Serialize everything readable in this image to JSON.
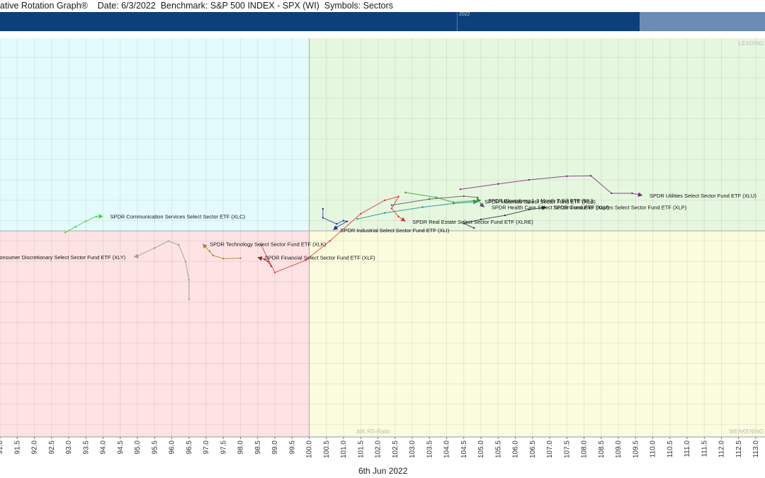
{
  "header": {
    "title_text": "ative Rotation Graph®    Date: 6/3/2022  Benchmark: S&P 500 INDEX - SPX (WI)  Symbols: Sectors",
    "timeline_year": "2022"
  },
  "footer": {
    "date_label": "6th Jun 2022"
  },
  "colors": {
    "leading": "#e6f7e0",
    "weakening": "#fbfbde",
    "lagging": "#fde3e3",
    "improving": "#e4fbfc",
    "nav_bar": "#0d3f78",
    "nav_window": "#6b8db5"
  },
  "chart_data": {
    "type": "scatter",
    "title": "",
    "xlabel": "JdK RS-Ratio",
    "ylabel": "",
    "xlim": [
      91.0,
      113.3
    ],
    "ylim": [
      95.1,
      104.8
    ],
    "center": [
      100,
      100
    ],
    "grid": true,
    "quadrant_labels": [
      "LEADING",
      "WEAKENING"
    ],
    "x_ticks": [
      "91.0",
      "91.5",
      "92.0",
      "92.5",
      "93.0",
      "93.5",
      "94.0",
      "94.5",
      "95.0",
      "95.5",
      "96.0",
      "96.5",
      "97.0",
      "97.5",
      "98.0",
      "98.5",
      "99.0",
      "99.5",
      "100.0",
      "100.5",
      "101.0",
      "101.5",
      "102.0",
      "102.5",
      "103.0",
      "103.5",
      "104.0",
      "104.5",
      "105.0",
      "105.5",
      "106.0",
      "106.5",
      "107.0",
      "107.5",
      "108.0",
      "108.5",
      "109.0",
      "109.5",
      "110.0",
      "110.5",
      "111.0",
      "111.5",
      "112.0",
      "112.5",
      "113.0"
    ],
    "series": [
      {
        "name": "SPDR Communication Services Select Sector ETF (XLC)",
        "color": "#33dd33",
        "points": [
          [
            92.9,
            99.96
          ],
          [
            93.2,
            100.1
          ],
          [
            93.5,
            100.24
          ],
          [
            93.8,
            100.35
          ],
          [
            94.0,
            100.36
          ]
        ]
      },
      {
        "name": "SPDR Consumer Discretionary Select Sector Fund ETF (XLY)",
        "color": "#999999",
        "points": [
          [
            96.5,
            98.32
          ],
          [
            96.5,
            98.8
          ],
          [
            96.4,
            99.25
          ],
          [
            96.2,
            99.66
          ],
          [
            95.9,
            99.75
          ],
          [
            95.5,
            99.58
          ],
          [
            95.0,
            99.38
          ],
          [
            94.9,
            99.36
          ]
        ]
      },
      {
        "name": "SPDR Technology Select Sector Fund ETF (XLK)",
        "color": "#9a8a30",
        "points": [
          [
            98.0,
            99.33
          ],
          [
            97.5,
            99.32
          ],
          [
            97.2,
            99.4
          ],
          [
            97.1,
            99.5
          ],
          [
            96.9,
            99.68
          ]
        ]
      },
      {
        "name": "SPDR Financial Select Sector Fund ETF (XLF)",
        "color": "#8a2020",
        "points": [
          [
            98.9,
            99.13
          ],
          [
            98.8,
            99.25
          ],
          [
            98.7,
            99.3
          ],
          [
            98.5,
            99.35
          ]
        ]
      },
      {
        "name": "SPDR Industrial Select Sector Fund ETF (XLI)",
        "color": "#2c2ca0",
        "points": [
          [
            100.4,
            100.54
          ],
          [
            100.4,
            100.32
          ],
          [
            100.8,
            100.17
          ],
          [
            101.0,
            100.25
          ],
          [
            101.1,
            100.23
          ],
          [
            100.8,
            100.09
          ],
          [
            100.7,
            100.02
          ]
        ]
      },
      {
        "name": "SPDR Real Estate Select Sector Fund ETF (XLRE)",
        "color": "#e03030",
        "points": [
          [
            98.6,
            99.65
          ],
          [
            99.0,
            98.98
          ],
          [
            99.9,
            99.28
          ],
          [
            100.6,
            99.75
          ],
          [
            101.5,
            100.42
          ],
          [
            102.2,
            100.75
          ],
          [
            102.6,
            100.84
          ],
          [
            102.4,
            100.55
          ],
          [
            102.6,
            100.35
          ],
          [
            102.8,
            100.23
          ]
        ]
      },
      {
        "name": "SPDR Materials Select Sector Fund ETF (XLB)",
        "color": "#1a8a8a",
        "points": [
          [
            101.4,
            100.29
          ],
          [
            102.2,
            100.44
          ],
          [
            103.3,
            100.58
          ],
          [
            104.2,
            100.67
          ],
          [
            104.8,
            100.71
          ],
          [
            104.9,
            100.72
          ]
        ]
      },
      {
        "name": "SPDR Bloomberg 1-3 Month T-Bill ETF (BIL)",
        "color": "#22aa22",
        "points": [
          [
            102.8,
            100.94
          ],
          [
            103.7,
            100.82
          ],
          [
            104.2,
            100.7
          ],
          [
            104.8,
            100.74
          ],
          [
            105.0,
            100.75
          ]
        ]
      },
      {
        "name": "SPDR Health Care Select Sector Fund ETF (XLV)",
        "color": "#555555",
        "points": [
          [
            102.4,
            100.63
          ],
          [
            103.5,
            100.78
          ],
          [
            104.5,
            100.85
          ],
          [
            104.9,
            100.82
          ],
          [
            105.0,
            100.65
          ],
          [
            105.1,
            100.58
          ]
        ]
      },
      {
        "name": "SPDR Consumer Staples Select Sector Fund ETF (XLP)",
        "color": "#333333",
        "points": [
          [
            104.8,
            100.07
          ],
          [
            104.5,
            100.18
          ],
          [
            105.0,
            100.28
          ],
          [
            105.7,
            100.38
          ],
          [
            106.4,
            100.52
          ],
          [
            106.9,
            100.58
          ]
        ]
      },
      {
        "name": "SPDR Utilities Select Sector Fund ETF (XLU)",
        "color": "#7a2a80",
        "points": [
          [
            104.4,
            101.02
          ],
          [
            105.5,
            101.15
          ],
          [
            106.4,
            101.25
          ],
          [
            107.5,
            101.34
          ],
          [
            108.2,
            101.35
          ],
          [
            108.8,
            100.92
          ],
          [
            109.4,
            100.92
          ],
          [
            109.7,
            100.87
          ]
        ]
      }
    ]
  }
}
